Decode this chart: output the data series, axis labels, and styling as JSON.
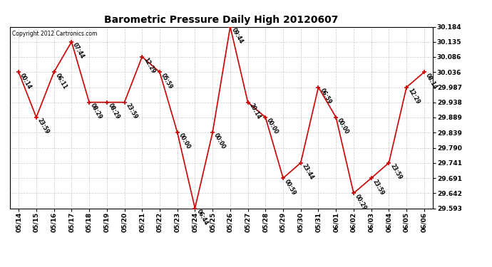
{
  "title": "Barometric Pressure Daily High 20120607",
  "copyright": "Copyright 2012 Cartronics.com",
  "background_color": "#ffffff",
  "grid_color": "#c8c8c8",
  "line_color": "#cc0000",
  "marker_color": "#cc0000",
  "dates": [
    "05/14",
    "05/15",
    "05/16",
    "05/17",
    "05/18",
    "05/19",
    "05/20",
    "05/21",
    "05/22",
    "05/23",
    "05/24",
    "05/25",
    "05/26",
    "05/27",
    "05/28",
    "05/29",
    "05/30",
    "05/31",
    "06/01",
    "06/02",
    "06/03",
    "06/04",
    "06/05",
    "06/06"
  ],
  "values": [
    30.036,
    29.889,
    30.036,
    30.135,
    29.938,
    29.938,
    29.938,
    30.086,
    30.036,
    29.84,
    29.593,
    29.84,
    30.184,
    29.938,
    29.889,
    29.691,
    29.741,
    29.987,
    29.889,
    29.642,
    29.691,
    29.741,
    29.987,
    30.036
  ],
  "annotations": [
    "00:14",
    "23:59",
    "06:11",
    "07:44",
    "08:29",
    "08:29",
    "23:59",
    "12:29",
    "05:59",
    "00:00",
    "06:44",
    "00:00",
    "09:44",
    "20:14",
    "00:00",
    "00:59",
    "23:44",
    "06:59",
    "00:00",
    "00:29",
    "23:59",
    "23:59",
    "12:29",
    "08:14"
  ],
  "ylim_min": 29.593,
  "ylim_max": 30.184,
  "yticks": [
    29.593,
    29.642,
    29.691,
    29.741,
    29.79,
    29.839,
    29.889,
    29.938,
    29.987,
    30.036,
    30.086,
    30.135,
    30.184
  ],
  "ytick_labels": [
    "29.593",
    "29.642",
    "29.691",
    "29.741",
    "29.790",
    "29.839",
    "29.889",
    "29.938",
    "29.987",
    "30.036",
    "30.086",
    "30.135",
    "30.184"
  ]
}
